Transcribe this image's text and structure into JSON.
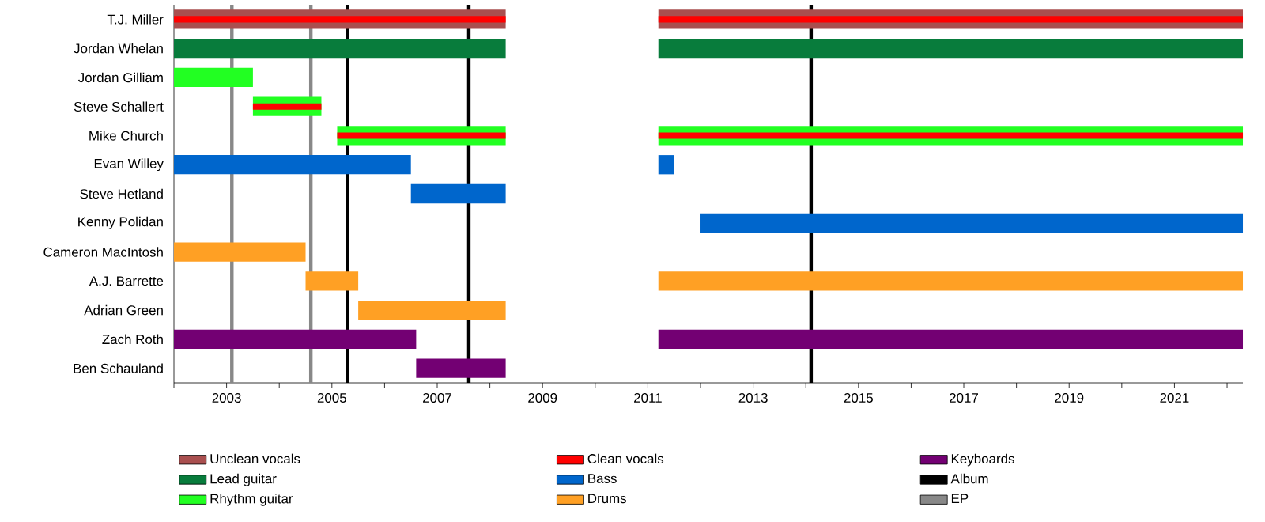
{
  "chart_data": {
    "type": "bar",
    "orientation": "horizontal",
    "legend": "bottom",
    "categories": [
      "T.J. Miller",
      "Jordan Whelan",
      "Jordan Gilliam",
      "Steve Schallert",
      "Mike Church",
      "Evan Willey",
      "Steve Hetland",
      "Kenny Polidan",
      "Cameron MacIntosh",
      "A.J. Barrette",
      "Adrian Green",
      "Zach Roth",
      "Ben Schauland"
    ],
    "series": [
      {
        "name": "Unclean vocals",
        "color": "#a94f4f",
        "base": [
          2002,
          null,
          null,
          null,
          null,
          null,
          null,
          null,
          null,
          null,
          null,
          null,
          null
        ],
        "values": [
          6.3,
          null,
          null,
          null,
          null,
          null,
          null,
          null,
          null,
          null,
          null,
          null,
          null
        ]
      },
      {
        "name": "Lead guitar",
        "color": "#087c3c",
        "base": [
          null,
          2002,
          null,
          null,
          null,
          null,
          null,
          null,
          null,
          null,
          null,
          null,
          null
        ],
        "values": [
          null,
          6.3,
          null,
          null,
          null,
          null,
          null,
          null,
          null,
          null,
          null,
          null,
          null
        ]
      },
      {
        "name": "Rhythm guitar",
        "color": "#22ff22",
        "base": [
          null,
          null,
          2002,
          2003.5,
          2005.1,
          null,
          null,
          null,
          null,
          null,
          null,
          null,
          null
        ],
        "values": [
          null,
          null,
          1.5,
          1.3,
          3.2,
          null,
          null,
          null,
          null,
          null,
          null,
          null,
          null
        ]
      },
      {
        "name": "Clean vocals",
        "color": "#ff0000",
        "base": [
          2002,
          null,
          null,
          2003.5,
          2005.1,
          null,
          null,
          null,
          null,
          null,
          null,
          null,
          null
        ],
        "values": [
          6.3,
          null,
          null,
          1.3,
          3.2,
          null,
          null,
          null,
          null,
          null,
          null,
          null,
          null
        ]
      },
      {
        "name": "Bass",
        "color": "#0066cc",
        "base": [
          null,
          null,
          null,
          null,
          null,
          2002,
          2006.5,
          2012.0,
          null,
          null,
          null,
          null,
          null
        ],
        "values": [
          null,
          null,
          null,
          null,
          null,
          4.5,
          1.8,
          10.3,
          null,
          null,
          null,
          null,
          null
        ]
      },
      {
        "name": "Drums",
        "color": "#ffa024",
        "base": [
          null,
          null,
          null,
          null,
          null,
          null,
          null,
          null,
          2002,
          2004.5,
          2005.5,
          null,
          null
        ],
        "values": [
          null,
          null,
          null,
          null,
          null,
          null,
          null,
          null,
          2.5,
          1.0,
          2.8,
          null,
          null
        ]
      },
      {
        "name": "Keyboards",
        "color": "#730073",
        "base": [
          null,
          null,
          null,
          null,
          null,
          null,
          null,
          null,
          null,
          null,
          null,
          2002,
          2006.6
        ],
        "values": [
          null,
          null,
          null,
          null,
          null,
          null,
          null,
          null,
          null,
          null,
          null,
          4.6,
          1.7
        ]
      },
      {
        "color": "#a94f4f",
        "base": [
          2011.2,
          null,
          null,
          null,
          null,
          null,
          null,
          null,
          null,
          null,
          null,
          null,
          null
        ],
        "values": [
          11.1,
          null,
          null,
          null,
          null,
          null,
          null,
          null,
          null,
          null,
          null,
          null,
          null
        ]
      },
      {
        "color": "#087c3c",
        "base": [
          null,
          2011.2,
          null,
          null,
          null,
          null,
          null,
          null,
          null,
          null,
          null,
          null,
          null
        ],
        "values": [
          null,
          11.1,
          null,
          null,
          null,
          null,
          null,
          null,
          null,
          null,
          null,
          null,
          null
        ]
      },
      {
        "color": "#22ff22",
        "base": [
          null,
          null,
          null,
          null,
          2011.2,
          null,
          null,
          null,
          null,
          null,
          null,
          null,
          null
        ],
        "values": [
          null,
          null,
          null,
          null,
          11.1,
          null,
          null,
          null,
          null,
          null,
          null,
          null,
          null
        ]
      },
      {
        "color": "#0066cc",
        "base": [
          null,
          null,
          null,
          null,
          null,
          2011.2,
          null,
          null,
          null,
          null,
          null,
          null,
          null
        ],
        "values": [
          null,
          null,
          null,
          null,
          null,
          0.3,
          null,
          null,
          null,
          null,
          null,
          null,
          null
        ]
      },
      {
        "color": "#ffa024",
        "base": [
          null,
          null,
          null,
          null,
          null,
          null,
          null,
          null,
          null,
          2011.2,
          null,
          null,
          null
        ],
        "values": [
          null,
          null,
          null,
          null,
          null,
          null,
          null,
          null,
          null,
          11.1,
          null,
          null,
          null
        ]
      },
      {
        "color": "#730073",
        "base": [
          null,
          null,
          null,
          null,
          null,
          null,
          null,
          null,
          null,
          null,
          null,
          2011.2,
          null
        ],
        "values": [
          null,
          null,
          null,
          null,
          null,
          null,
          null,
          null,
          null,
          null,
          null,
          11.1,
          null
        ]
      },
      {
        "color": "#ff0000",
        "base": [
          2011.2,
          null,
          null,
          null,
          2011.2,
          null,
          null,
          null,
          null,
          null,
          null,
          null,
          null
        ],
        "values": [
          11.1,
          null,
          null,
          null,
          11.1,
          null,
          null,
          null,
          null,
          null,
          null,
          null,
          null
        ]
      }
    ],
    "xlim": [
      2002,
      2022.3
    ],
    "xticks": [
      {
        "value": 2002,
        "label": null
      },
      2003,
      {
        "value": 2004,
        "label": null
      },
      2005,
      {
        "value": 2006,
        "label": null
      },
      2007,
      {
        "value": 2008,
        "label": null
      },
      2009,
      {
        "value": 2010,
        "label": null
      },
      2011,
      {
        "value": 2012,
        "label": null
      },
      2013,
      {
        "value": 2014,
        "label": null
      },
      2015,
      {
        "value": 2016,
        "label": null
      },
      2017,
      {
        "value": 2018,
        "label": null
      },
      2019,
      {
        "value": 2020,
        "label": null
      },
      2021,
      {
        "value": 2022,
        "label": null
      }
    ],
    "ref_lines": [
      {
        "axis": "x",
        "value": 2005.3,
        "label": "Album",
        "color": "#000000"
      },
      {
        "axis": "x",
        "value": 2007.6,
        "label": null,
        "color": "#000000"
      },
      {
        "axis": "x",
        "value": 2014.1,
        "label": null,
        "color": "#000000"
      },
      {
        "axis": "x",
        "value": 2003.1,
        "label": "EP",
        "color": "#888888"
      },
      {
        "axis": "x",
        "value": 2004.6,
        "label": null,
        "color": "#888888"
      }
    ]
  }
}
